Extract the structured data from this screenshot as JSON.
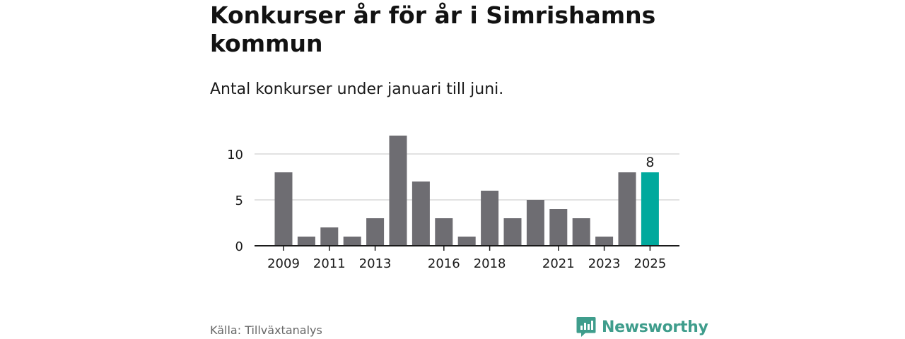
{
  "title": "Konkurser år för år i Simrishamns kommun",
  "subtitle": "Antal konkurser under januari till juni.",
  "source": "Källa: Tillväxtanalys",
  "brand": {
    "name": "Newsworthy",
    "color": "#3f9d8c",
    "icon": "newsworthy-logo-icon"
  },
  "colors": {
    "bar": "#6e6d72",
    "highlight": "#00a99d",
    "grid": "#d9d9d9",
    "axis": "#1a1a1a"
  },
  "chart_data": {
    "type": "bar",
    "categories": [
      "2009",
      "2010",
      "2011",
      "2012",
      "2013",
      "2014",
      "2015",
      "2016",
      "2017",
      "2018",
      "2019",
      "2020",
      "2021",
      "2022",
      "2023",
      "2024",
      "2025"
    ],
    "values": [
      8,
      1,
      2,
      1,
      3,
      12,
      7,
      3,
      1,
      6,
      3,
      5,
      4,
      3,
      1,
      8,
      8
    ],
    "x_tick_labels": [
      "2009",
      "2011",
      "2013",
      "2016",
      "2018",
      "2021",
      "2023",
      "2025"
    ],
    "y_ticks": [
      0,
      5,
      10
    ],
    "ylim": [
      0,
      12
    ],
    "highlight_category": "2025",
    "highlight_label": "8",
    "grid": true,
    "xlabel": "",
    "ylabel": ""
  }
}
